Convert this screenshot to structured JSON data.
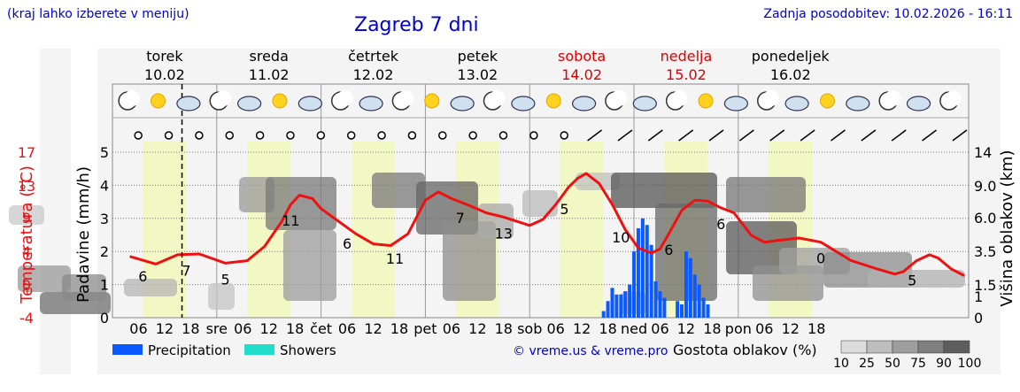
{
  "header": {
    "note": "(kraj lahko izberete v meniju)",
    "title": "Zagreb 7 dni",
    "updated": "Zadnja posodobitev: 10.02.2026 - 16:11"
  },
  "days": [
    {
      "name": "torek",
      "date": "10.02",
      "weekend": false
    },
    {
      "name": "sreda",
      "date": "11.02",
      "weekend": false
    },
    {
      "name": "četrtek",
      "date": "12.02",
      "weekend": false
    },
    {
      "name": "petek",
      "date": "13.02",
      "weekend": false
    },
    {
      "name": "sobota",
      "date": "14.02",
      "weekend": true
    },
    {
      "name": "nedelja",
      "date": "15.02",
      "weekend": true
    },
    {
      "name": "ponedeljek",
      "date": "16.02",
      "weekend": false
    }
  ],
  "x_tick_labels": [
    "06",
    "12",
    "18",
    "sre",
    "06",
    "12",
    "18",
    "čet",
    "06",
    "12",
    "18",
    "pet",
    "06",
    "12",
    "18",
    "sob",
    "06",
    "12",
    "18",
    "ned",
    "06",
    "12",
    "18",
    "pon",
    "06",
    "12",
    "18"
  ],
  "left_axis": {
    "precip_label": "Padavine (mm/h)",
    "precip_ticks": [
      "0",
      "1",
      "2",
      "3",
      "4",
      "5"
    ],
    "temp_label": "Temperatura (°C)",
    "temp_ticks": [
      "-4",
      "0",
      "4",
      "9",
      "13",
      "17"
    ]
  },
  "right_axis": {
    "label": "Višina oblakov (km)",
    "ticks": [
      "0",
      "1",
      "1.5",
      "3.5",
      "6.0",
      "9.0",
      "14"
    ]
  },
  "legend": {
    "precipitation": "Precipitation",
    "showers": "Showers",
    "credit": "© vreme.us & vreme.pro",
    "cloud_density_label": "Gostota oblakov (%)",
    "cloud_density_ticks": [
      "10",
      "25",
      "50",
      "75",
      "90",
      "100"
    ]
  },
  "colors": {
    "temperature": "#ee1111",
    "precipitation": "#0a5aff",
    "showers": "#22ddcc",
    "weekend_text": "#dd0000",
    "axis_red": "#ee1111",
    "daylight": "#f2f8c4",
    "night": "#f4f4f4"
  },
  "chart_data": {
    "type": "line",
    "x_unit": "hours since 10.02 00:00",
    "series": [
      {
        "name": "Temperatura (°C)",
        "points": [
          [
            4,
            3.3
          ],
          [
            10,
            2.4
          ],
          [
            15,
            3.5
          ],
          [
            20,
            3.6
          ],
          [
            26,
            2.5
          ],
          [
            31,
            2.8
          ],
          [
            35,
            4.5
          ],
          [
            39,
            7.5
          ],
          [
            41,
            9.5
          ],
          [
            43,
            10.6
          ],
          [
            46,
            10.2
          ],
          [
            48,
            9.0
          ],
          [
            52,
            7.5
          ],
          [
            56,
            6.0
          ],
          [
            60,
            4.8
          ],
          [
            64,
            4.6
          ],
          [
            68,
            6.0
          ],
          [
            70,
            8.0
          ],
          [
            72,
            10.0
          ],
          [
            75,
            11.0
          ],
          [
            78,
            10.2
          ],
          [
            82,
            9.4
          ],
          [
            86,
            8.5
          ],
          [
            90,
            8.0
          ],
          [
            96,
            7.0
          ],
          [
            99,
            7.7
          ],
          [
            102,
            9.5
          ],
          [
            105,
            11.6
          ],
          [
            107,
            12.6
          ],
          [
            109,
            13.2
          ],
          [
            112,
            12.0
          ],
          [
            115,
            9.5
          ],
          [
            118,
            6.5
          ],
          [
            121,
            4.3
          ],
          [
            124,
            3.7
          ],
          [
            126,
            4.2
          ],
          [
            128,
            6.0
          ],
          [
            131,
            8.8
          ],
          [
            134,
            10.0
          ],
          [
            137,
            9.9
          ],
          [
            140,
            9.1
          ],
          [
            143,
            8.5
          ],
          [
            147,
            5.8
          ],
          [
            150,
            5.0
          ],
          [
            153,
            5.2
          ],
          [
            158,
            5.5
          ],
          [
            163,
            5.0
          ],
          [
            170,
            2.8
          ],
          [
            176,
            1.8
          ],
          [
            180,
            1.2
          ],
          [
            182,
            1.5
          ],
          [
            185,
            2.8
          ],
          [
            188,
            3.5
          ],
          [
            190,
            3.1
          ],
          [
            193,
            1.8
          ],
          [
            196,
            1.0
          ]
        ],
        "labels": [
          {
            "x": 7,
            "text": "6"
          },
          {
            "x": 17,
            "text": "7"
          },
          {
            "x": 26,
            "text": "5"
          },
          {
            "x": 41,
            "text": "11"
          },
          {
            "x": 54,
            "text": "6"
          },
          {
            "x": 65,
            "text": "11"
          },
          {
            "x": 80,
            "text": "7"
          },
          {
            "x": 90,
            "text": "13"
          },
          {
            "x": 104,
            "text": "5"
          },
          {
            "x": 117,
            "text": "10"
          },
          {
            "x": 128,
            "text": "6"
          },
          {
            "x": 140,
            "text": "6"
          },
          {
            "x": 163,
            "text": "0"
          },
          {
            "x": 184,
            "text": "5"
          }
        ]
      },
      {
        "name": "Precipitation",
        "unit": "mm/h",
        "bars": [
          [
            113,
            0.2
          ],
          [
            114,
            0.5
          ],
          [
            115,
            0.9
          ],
          [
            116,
            0.7
          ],
          [
            117,
            0.7
          ],
          [
            118,
            0.8
          ],
          [
            119,
            1.0
          ],
          [
            120,
            2.0
          ],
          [
            121,
            2.7
          ],
          [
            122,
            3.0
          ],
          [
            123,
            2.8
          ],
          [
            124,
            2.2
          ],
          [
            125,
            1.1
          ],
          [
            126,
            0.8
          ],
          [
            127,
            0.6
          ],
          [
            130,
            0.5
          ],
          [
            131,
            0.4
          ],
          [
            132,
            2.0
          ],
          [
            133,
            1.8
          ],
          [
            134,
            1.3
          ],
          [
            135,
            1.0
          ],
          [
            136,
            0.6
          ],
          [
            137,
            0.4
          ]
        ]
      }
    ],
    "temp_ylim": [
      -4,
      17
    ],
    "precip_ylim": [
      0,
      5
    ],
    "cloud_height_ticks_km": [
      "0",
      "1",
      "1.5",
      "3.5",
      "6.0",
      "9.0",
      "14"
    ],
    "x_range": [
      0,
      197
    ],
    "grid": true
  }
}
